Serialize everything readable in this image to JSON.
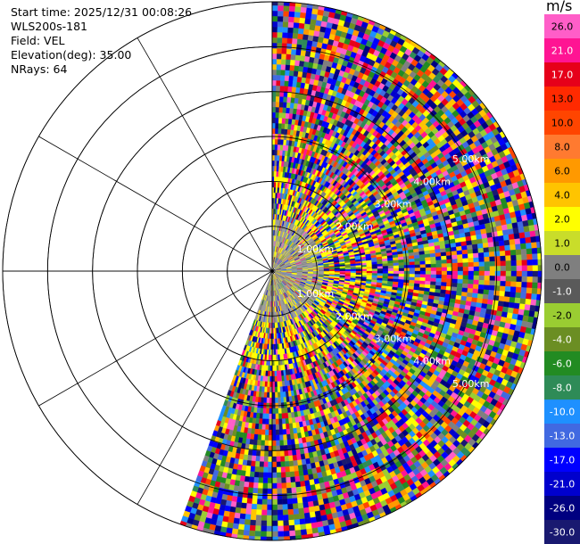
{
  "info": {
    "start_time": "Start time: 2025/12/31 00:08:26",
    "instrument": "WLS200s-181",
    "field": "Field: VEL",
    "elevation": "Elevation(deg): 35.00",
    "nrays": "NRays: 64"
  },
  "chart_data": {
    "type": "heatmap",
    "projection": "polar-ppi",
    "field": "VEL",
    "units": "m/s",
    "nrays": 64,
    "azimuth_start_deg": 0,
    "azimuth_end_deg": 200,
    "range_km_max": 6.0,
    "range_rings_km": [
      1,
      2,
      3,
      4,
      5,
      6
    ],
    "range_ring_labels": [
      "1.00km",
      "2.00km",
      "3.00km",
      "4.00km",
      "5.00km"
    ],
    "colorbar": {
      "label": "m/s",
      "levels": [
        "26.0",
        "21.0",
        "17.0",
        "13.0",
        "10.0",
        "8.0",
        "6.0",
        "4.0",
        "2.0",
        "1.0",
        "0.0",
        "-1.0",
        "-2.0",
        "-4.0",
        "-6.0",
        "-8.0",
        "-10.0",
        "-13.0",
        "-17.0",
        "-21.0",
        "-26.0",
        "-30.0"
      ],
      "colors": [
        "#ff5ec8",
        "#ff1493",
        "#e6001a",
        "#ff2a00",
        "#ff4500",
        "#ff7a30",
        "#ff9900",
        "#ffc400",
        "#ffff00",
        "#c9dd2a",
        "#7f7f7f",
        "#5a5a5a",
        "#9acd32",
        "#6b8e23",
        "#228b22",
        "#2e8b57",
        "#1e90ff",
        "#4169e1",
        "#0000ff",
        "#0000cd",
        "#000080",
        "#191970"
      ]
    }
  }
}
